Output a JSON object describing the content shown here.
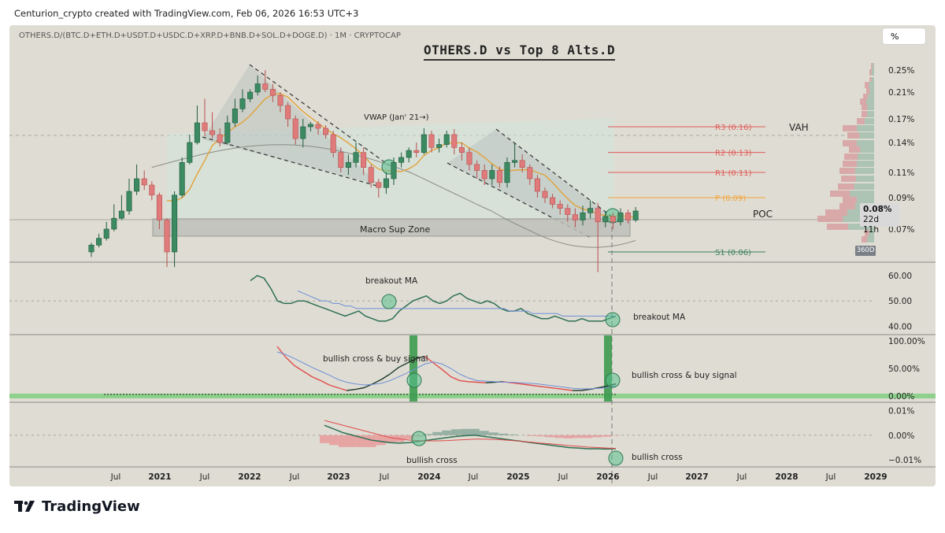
{
  "header": {
    "attribution": "Centurion_crypto created with TradingView.com, Feb 06, 2026 16:53 UTC+3"
  },
  "footer": {
    "brand": "TradingView",
    "icon": "tradingview-logo-icon"
  },
  "chart_data": {
    "type": "candlestick",
    "symbol_line": "OTHERS.D/(BTC.D+ETH.D+USDT.D+USDC.D+XRP.D+BNB.D+SOL.D+DOGE.D) · 1M · CRYPTOCAP",
    "title": "OTHERS.D vs Top 8 Alts.D",
    "scale_button": "%",
    "price_axis": {
      "ticks": [
        "0.25%",
        "0.21%",
        "0.17%",
        "0.14%",
        "0.11%",
        "0.09%",
        "0.07%"
      ],
      "tick_values": [
        0.25,
        0.21,
        0.17,
        0.14,
        0.11,
        0.09,
        0.07
      ],
      "current_price": "0.08%",
      "countdown": "22d 11h"
    },
    "x_axis": {
      "ticks": [
        "Jul",
        "2021",
        "Jul",
        "2022",
        "Jul",
        "2023",
        "Jul",
        "2024",
        "Jul",
        "2025",
        "Jul",
        "2026",
        "Jul",
        "2027",
        "Jul",
        "2028",
        "Jul",
        "2029"
      ]
    },
    "candles": [
      {
        "o": 0.06,
        "c": 0.063,
        "h": 0.064,
        "l": 0.058
      },
      {
        "o": 0.063,
        "c": 0.066,
        "h": 0.068,
        "l": 0.062
      },
      {
        "o": 0.066,
        "c": 0.07,
        "h": 0.074,
        "l": 0.065
      },
      {
        "o": 0.07,
        "c": 0.076,
        "h": 0.085,
        "l": 0.069
      },
      {
        "o": 0.076,
        "c": 0.08,
        "h": 0.092,
        "l": 0.075
      },
      {
        "o": 0.08,
        "c": 0.095,
        "h": 0.105,
        "l": 0.078
      },
      {
        "o": 0.095,
        "c": 0.105,
        "h": 0.118,
        "l": 0.092
      },
      {
        "o": 0.105,
        "c": 0.1,
        "h": 0.112,
        "l": 0.096
      },
      {
        "o": 0.1,
        "c": 0.092,
        "h": 0.103,
        "l": 0.088
      },
      {
        "o": 0.092,
        "c": 0.075,
        "h": 0.094,
        "l": 0.07
      },
      {
        "o": 0.075,
        "c": 0.06,
        "h": 0.076,
        "l": 0.054
      },
      {
        "o": 0.06,
        "c": 0.092,
        "h": 0.095,
        "l": 0.054
      },
      {
        "o": 0.092,
        "c": 0.12,
        "h": 0.125,
        "l": 0.09
      },
      {
        "o": 0.12,
        "c": 0.14,
        "h": 0.15,
        "l": 0.118
      },
      {
        "o": 0.14,
        "c": 0.165,
        "h": 0.19,
        "l": 0.138
      },
      {
        "o": 0.165,
        "c": 0.155,
        "h": 0.2,
        "l": 0.148
      },
      {
        "o": 0.155,
        "c": 0.15,
        "h": 0.18,
        "l": 0.145
      },
      {
        "o": 0.15,
        "c": 0.14,
        "h": 0.158,
        "l": 0.136
      },
      {
        "o": 0.14,
        "c": 0.165,
        "h": 0.175,
        "l": 0.138
      },
      {
        "o": 0.165,
        "c": 0.185,
        "h": 0.2,
        "l": 0.16
      },
      {
        "o": 0.185,
        "c": 0.2,
        "h": 0.215,
        "l": 0.18
      },
      {
        "o": 0.2,
        "c": 0.21,
        "h": 0.215,
        "l": 0.195
      },
      {
        "o": 0.21,
        "c": 0.225,
        "h": 0.24,
        "l": 0.205
      },
      {
        "o": 0.225,
        "c": 0.215,
        "h": 0.25,
        "l": 0.21
      },
      {
        "o": 0.215,
        "c": 0.205,
        "h": 0.225,
        "l": 0.195
      },
      {
        "o": 0.205,
        "c": 0.19,
        "h": 0.21,
        "l": 0.18
      },
      {
        "o": 0.19,
        "c": 0.17,
        "h": 0.195,
        "l": 0.16
      },
      {
        "o": 0.17,
        "c": 0.145,
        "h": 0.175,
        "l": 0.138
      },
      {
        "o": 0.145,
        "c": 0.16,
        "h": 0.17,
        "l": 0.135
      },
      {
        "o": 0.16,
        "c": 0.163,
        "h": 0.166,
        "l": 0.154
      },
      {
        "o": 0.163,
        "c": 0.158,
        "h": 0.167,
        "l": 0.15
      },
      {
        "o": 0.158,
        "c": 0.15,
        "h": 0.162,
        "l": 0.145
      },
      {
        "o": 0.15,
        "c": 0.13,
        "h": 0.155,
        "l": 0.125
      },
      {
        "o": 0.13,
        "c": 0.115,
        "h": 0.135,
        "l": 0.11
      },
      {
        "o": 0.115,
        "c": 0.12,
        "h": 0.128,
        "l": 0.108
      },
      {
        "o": 0.12,
        "c": 0.13,
        "h": 0.14,
        "l": 0.115
      },
      {
        "o": 0.13,
        "c": 0.115,
        "h": 0.135,
        "l": 0.108
      },
      {
        "o": 0.115,
        "c": 0.102,
        "h": 0.118,
        "l": 0.098
      },
      {
        "o": 0.102,
        "c": 0.098,
        "h": 0.105,
        "l": 0.09
      },
      {
        "o": 0.098,
        "c": 0.105,
        "h": 0.11,
        "l": 0.093
      },
      {
        "o": 0.105,
        "c": 0.12,
        "h": 0.125,
        "l": 0.1
      },
      {
        "o": 0.12,
        "c": 0.125,
        "h": 0.13,
        "l": 0.115
      },
      {
        "o": 0.125,
        "c": 0.132,
        "h": 0.135,
        "l": 0.12
      },
      {
        "o": 0.132,
        "c": 0.13,
        "h": 0.14,
        "l": 0.125
      },
      {
        "o": 0.13,
        "c": 0.15,
        "h": 0.158,
        "l": 0.128
      },
      {
        "o": 0.15,
        "c": 0.135,
        "h": 0.155,
        "l": 0.13
      },
      {
        "o": 0.135,
        "c": 0.138,
        "h": 0.145,
        "l": 0.13
      },
      {
        "o": 0.138,
        "c": 0.15,
        "h": 0.155,
        "l": 0.135
      },
      {
        "o": 0.15,
        "c": 0.135,
        "h": 0.157,
        "l": 0.128
      },
      {
        "o": 0.135,
        "c": 0.13,
        "h": 0.14,
        "l": 0.122
      },
      {
        "o": 0.13,
        "c": 0.118,
        "h": 0.135,
        "l": 0.112
      },
      {
        "o": 0.118,
        "c": 0.112,
        "h": 0.122,
        "l": 0.105
      },
      {
        "o": 0.112,
        "c": 0.105,
        "h": 0.118,
        "l": 0.1
      },
      {
        "o": 0.105,
        "c": 0.112,
        "h": 0.118,
        "l": 0.1
      },
      {
        "o": 0.112,
        "c": 0.102,
        "h": 0.116,
        "l": 0.098
      },
      {
        "o": 0.102,
        "c": 0.12,
        "h": 0.125,
        "l": 0.098
      },
      {
        "o": 0.12,
        "c": 0.122,
        "h": 0.14,
        "l": 0.115
      },
      {
        "o": 0.122,
        "c": 0.115,
        "h": 0.128,
        "l": 0.11
      },
      {
        "o": 0.115,
        "c": 0.105,
        "h": 0.118,
        "l": 0.1
      },
      {
        "o": 0.105,
        "c": 0.095,
        "h": 0.108,
        "l": 0.09
      },
      {
        "o": 0.095,
        "c": 0.09,
        "h": 0.098,
        "l": 0.086
      },
      {
        "o": 0.09,
        "c": 0.085,
        "h": 0.093,
        "l": 0.082
      },
      {
        "o": 0.085,
        "c": 0.082,
        "h": 0.088,
        "l": 0.078
      },
      {
        "o": 0.082,
        "c": 0.078,
        "h": 0.085,
        "l": 0.074
      },
      {
        "o": 0.078,
        "c": 0.075,
        "h": 0.082,
        "l": 0.071
      },
      {
        "o": 0.075,
        "c": 0.079,
        "h": 0.084,
        "l": 0.072
      },
      {
        "o": 0.079,
        "c": 0.082,
        "h": 0.088,
        "l": 0.076
      },
      {
        "o": 0.082,
        "c": 0.074,
        "h": 0.086,
        "l": 0.052
      },
      {
        "o": 0.074,
        "c": 0.077,
        "h": 0.08,
        "l": 0.071
      },
      {
        "o": 0.077,
        "c": 0.074,
        "h": 0.079,
        "l": 0.07
      },
      {
        "o": 0.074,
        "c": 0.079,
        "h": 0.082,
        "l": 0.072
      },
      {
        "o": 0.079,
        "c": 0.075,
        "h": 0.081,
        "l": 0.073
      },
      {
        "o": 0.075,
        "c": 0.08,
        "h": 0.083,
        "l": 0.074
      }
    ],
    "pivots": [
      {
        "label": "R3 (0.16)",
        "value": 0.16,
        "color": "#e05a5a"
      },
      {
        "label": "R2 (0.13)",
        "value": 0.13,
        "color": "#e05a5a"
      },
      {
        "label": "R1 (0.11)",
        "value": 0.11,
        "color": "#e05a5a"
      },
      {
        "label": "P (0.09)",
        "value": 0.09,
        "color": "#f2a43a"
      },
      {
        "label": "S1 (0.06)",
        "value": 0.06,
        "color": "#3a7d5c"
      }
    ],
    "annotations": {
      "vwap": "VWAP (Jan' 21→)",
      "zone": "Macro Sup Zone",
      "vah": "VAH",
      "poc": "POC",
      "profile_badge": "360D",
      "rsi_note_left": "breakout MA",
      "rsi_note_right": "breakout MA",
      "stoch_note_left": "bullish cross & buy signal",
      "stoch_note_right": "bullish cross & buy signal",
      "macd_note_left": "bullish cross",
      "macd_note_right": "bullish cross"
    },
    "rsi_axis": [
      "60.00",
      "50.00",
      "40.00"
    ],
    "stoch_axis": [
      "100.00%",
      "50.00%",
      "0.00%"
    ],
    "macd_axis": [
      "0.01%",
      "0.00%",
      "−0.01%"
    ],
    "rsi": [
      58,
      60,
      59,
      55,
      50,
      49,
      49,
      50,
      50,
      49,
      48,
      47,
      46,
      45,
      44,
      45,
      46,
      44,
      43,
      42,
      42,
      43,
      46,
      48,
      50,
      51,
      52,
      50,
      49,
      50,
      52,
      53,
      51,
      50,
      49,
      50,
      49,
      47,
      46,
      46,
      47,
      45,
      44,
      43,
      43,
      44,
      43,
      42,
      42,
      43,
      42,
      42,
      42,
      43,
      44
    ],
    "rsi_ma": [
      54,
      53,
      52,
      51,
      50,
      50,
      49,
      49,
      48,
      48,
      47,
      47,
      47,
      47,
      47,
      47,
      47,
      47,
      47,
      47,
      47,
      47,
      47,
      47,
      47,
      47,
      47,
      47,
      47,
      47,
      47,
      47,
      47,
      47,
      47,
      47,
      46,
      46,
      46,
      46,
      45,
      45,
      45,
      45,
      45,
      44,
      44,
      44,
      44,
      44,
      44,
      44,
      44,
      44,
      44
    ],
    "stoch_k": [
      90,
      70,
      55,
      45,
      35,
      28,
      20,
      15,
      10,
      12,
      15,
      22,
      30,
      40,
      52,
      60,
      68,
      72,
      60,
      48,
      35,
      28,
      26,
      25,
      24,
      25,
      26,
      24,
      22,
      20,
      18,
      16,
      14,
      12,
      10,
      10,
      12,
      15,
      18,
      22
    ],
    "stoch_d": [
      80,
      75,
      68,
      60,
      52,
      45,
      38,
      30,
      25,
      22,
      20,
      21,
      23,
      28,
      35,
      42,
      50,
      58,
      62,
      58,
      50,
      40,
      33,
      28,
      27,
      26,
      25,
      25,
      24,
      23,
      22,
      20,
      18,
      16,
      14,
      13,
      13,
      14,
      15,
      18
    ],
    "macd": [
      0.004,
      0.0025,
      0.001,
      0.0,
      -0.001,
      -0.002,
      -0.0025,
      -0.003,
      -0.0032,
      -0.003,
      -0.0025,
      -0.002,
      -0.0015,
      -0.001,
      -0.0005,
      -0.0002,
      0.0,
      -0.0005,
      -0.001,
      -0.0015,
      -0.002,
      -0.0025,
      -0.003,
      -0.0035,
      -0.004,
      -0.0045,
      -0.005,
      -0.0052,
      -0.0055,
      -0.0055,
      -0.0056,
      -0.0055
    ],
    "macd_signal": [
      0.006,
      0.005,
      0.004,
      0.003,
      0.002,
      0.001,
      0.0,
      -0.001,
      -0.0015,
      -0.002,
      -0.0022,
      -0.0023,
      -0.0023,
      -0.0022,
      -0.002,
      -0.0018,
      -0.0016,
      -0.0016,
      -0.0017,
      -0.0019,
      -0.0022,
      -0.0025,
      -0.0028,
      -0.0032,
      -0.0035,
      -0.0038,
      -0.0042,
      -0.0045,
      -0.0048,
      -0.005,
      -0.0052,
      -0.0054
    ]
  }
}
